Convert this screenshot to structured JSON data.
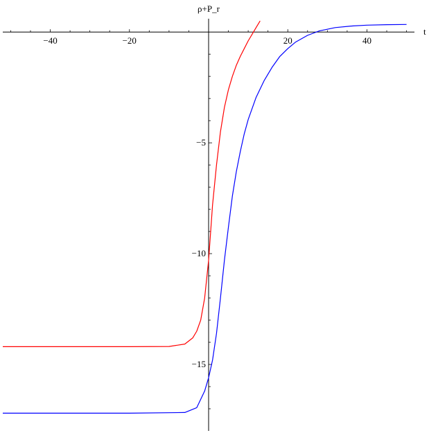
{
  "chart_data": {
    "type": "line",
    "title": "",
    "xlabel": "t",
    "ylabel": "ρ+P_r",
    "xlim": [
      -52,
      52
    ],
    "ylim": [
      -18,
      0.6
    ],
    "grid": false,
    "legend": "none",
    "x_ticks": [
      -40,
      -20,
      20,
      40
    ],
    "x_tick_labels": [
      "−40",
      "−20",
      "20",
      "40"
    ],
    "y_ticks": [
      -5,
      -10,
      -15
    ],
    "y_tick_labels": [
      "−5",
      "−10",
      "−15"
    ],
    "series": [
      {
        "color": "#ff0000",
        "x": [
          -52,
          -20,
          -10,
          -6,
          -4,
          -3,
          -2,
          -1,
          0,
          1,
          2,
          3,
          4,
          5,
          6,
          7,
          8,
          9,
          10,
          11,
          12,
          13
        ],
        "y": [
          -14.2,
          -14.2,
          -14.19,
          -14.08,
          -13.8,
          -13.5,
          -13.0,
          -12.0,
          -10.3,
          -7.8,
          -6.0,
          -4.5,
          -3.4,
          -2.6,
          -2.0,
          -1.5,
          -1.1,
          -0.75,
          -0.4,
          -0.1,
          0.2,
          0.5
        ]
      },
      {
        "color": "#0000ff",
        "x": [
          -52,
          -20,
          -6,
          -3,
          -1,
          0,
          1,
          2,
          3,
          4,
          5,
          6,
          7,
          8,
          9,
          10,
          12,
          14,
          16,
          18,
          20,
          22,
          25,
          28,
          32,
          36,
          40,
          45,
          50
        ],
        "y": [
          -17.2,
          -17.2,
          -17.17,
          -16.95,
          -16.2,
          -15.6,
          -14.8,
          -13.6,
          -12.0,
          -10.3,
          -8.8,
          -7.4,
          -6.3,
          -5.4,
          -4.6,
          -3.95,
          -2.95,
          -2.2,
          -1.6,
          -1.1,
          -0.75,
          -0.45,
          -0.15,
          0.05,
          0.2,
          0.27,
          0.31,
          0.33,
          0.34
        ]
      }
    ]
  }
}
